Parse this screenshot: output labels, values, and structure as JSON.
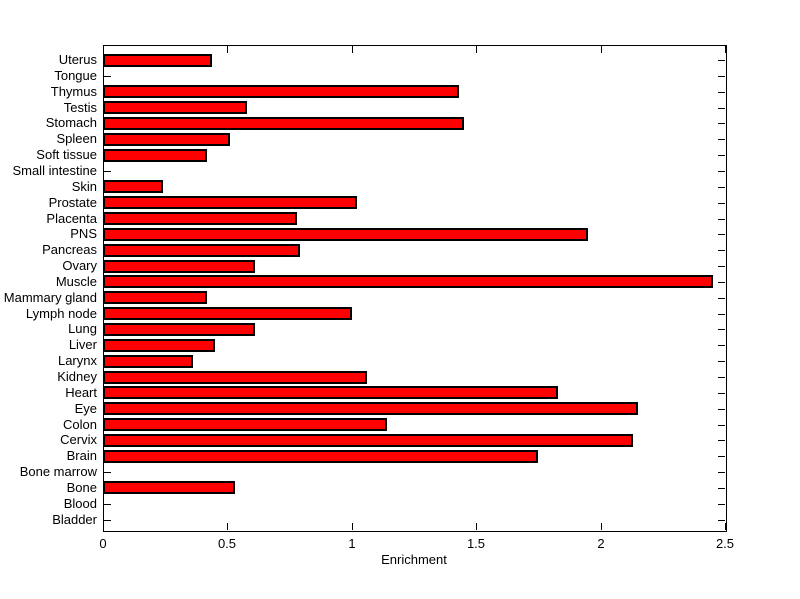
{
  "figure": {
    "background_color": "#ffffff",
    "axis_color": "#000000",
    "text_color": "#000000"
  },
  "chart_data": {
    "type": "bar",
    "orientation": "horizontal",
    "title": "",
    "xlabel": "Enrichment",
    "ylabel": "",
    "xlim": [
      0,
      2.5
    ],
    "xticks": [
      0,
      0.5,
      1,
      1.5,
      2,
      2.5
    ],
    "xtick_labels": [
      "0",
      "0.5",
      "1",
      "1.5",
      "2",
      "2.5"
    ],
    "grid": false,
    "legend": null,
    "bar_color": "#ff0000",
    "bar_edge_color": "#000000",
    "categories_top_to_bottom": [
      "Uterus",
      "Tongue",
      "Thymus",
      "Testis",
      "Stomach",
      "Spleen",
      "Soft tissue",
      "Small intestine",
      "Skin",
      "Prostate",
      "Placenta",
      "PNS",
      "Pancreas",
      "Ovary",
      "Muscle",
      "Mammary gland",
      "Lymph node",
      "Lung",
      "Liver",
      "Larynx",
      "Kidney",
      "Heart",
      "Eye",
      "Colon",
      "Cervix",
      "Brain",
      "Bone marrow",
      "Bone",
      "Blood",
      "Bladder"
    ],
    "values": [
      0.44,
      0,
      1.43,
      0.58,
      1.45,
      0.51,
      0.42,
      0,
      0.24,
      1.02,
      0.78,
      1.95,
      0.79,
      0.61,
      2.45,
      0.42,
      1.0,
      0.61,
      0.45,
      0.36,
      1.06,
      1.83,
      2.15,
      1.14,
      2.13,
      1.75,
      0,
      0.53,
      0,
      0
    ]
  }
}
